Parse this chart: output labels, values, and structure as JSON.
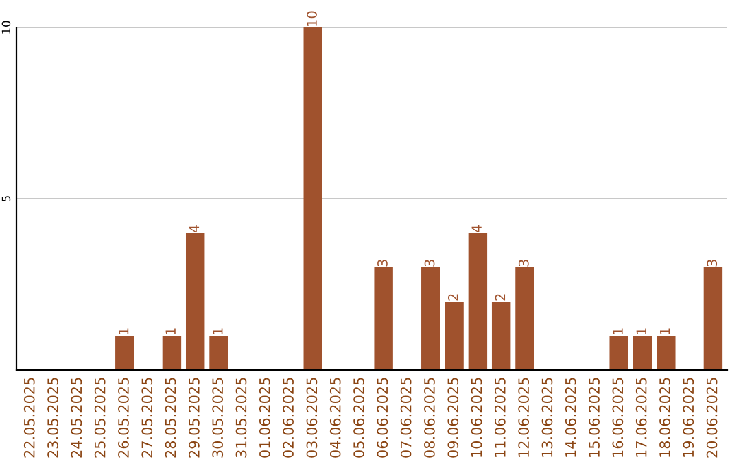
{
  "chart_data": {
    "type": "bar",
    "categories": [
      "22.05.2025",
      "23.05.2025",
      "24.05.2025",
      "25.05.2025",
      "26.05.2025",
      "27.05.2025",
      "28.05.2025",
      "29.05.2025",
      "30.05.2025",
      "31.05.2025",
      "01.06.2025",
      "02.06.2025",
      "03.06.2025",
      "04.06.2025",
      "05.06.2025",
      "06.06.2025",
      "07.06.2025",
      "08.06.2025",
      "09.06.2025",
      "10.06.2025",
      "11.06.2025",
      "12.06.2025",
      "13.06.2025",
      "14.06.2025",
      "15.06.2025",
      "16.06.2025",
      "17.06.2025",
      "18.06.2025",
      "19.06.2025",
      "20.06.2025"
    ],
    "values": [
      0,
      0,
      0,
      0,
      1,
      0,
      1,
      4,
      1,
      0,
      0,
      0,
      10,
      0,
      0,
      3,
      0,
      3,
      2,
      4,
      2,
      3,
      0,
      0,
      0,
      1,
      1,
      1,
      0,
      3
    ],
    "value_labels": [
      null,
      null,
      null,
      null,
      "1",
      null,
      "1",
      "4",
      "1",
      null,
      null,
      null,
      "10",
      null,
      null,
      "3",
      null,
      "3",
      "2",
      "4",
      "2",
      "3",
      null,
      null,
      null,
      "1",
      "1",
      "1",
      null,
      "3"
    ],
    "color": "#a0522d",
    "ylim": [
      0,
      10
    ],
    "yticks": [
      5,
      10
    ],
    "grid": "y",
    "legend": false
  }
}
